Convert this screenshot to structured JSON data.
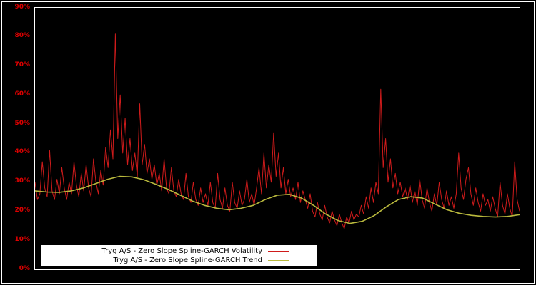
{
  "chart_data": {
    "type": "line",
    "title": "",
    "background_color": "#000000",
    "frame_color": "#ffffff",
    "axis_tick_color": "#dd0000",
    "grid": false,
    "legend_position": "bottom-left-inside",
    "ylim": [
      0,
      90
    ],
    "y_tick_values": [
      0,
      10,
      20,
      30,
      40,
      50,
      60,
      70,
      80,
      90
    ],
    "y_tick_labels": [
      "0%",
      "10%",
      "20%",
      "30%",
      "40%",
      "50%",
      "60%",
      "70%",
      "80%",
      "90%"
    ],
    "y_unit": "percent",
    "series": [
      {
        "name": "Tryg A/S - Zero Slope Spline-GARCH Volatility",
        "color": "#cf1b1b",
        "stroke_width": 1,
        "values": [
          30,
          24,
          26,
          37,
          28,
          25,
          41,
          27,
          24,
          31,
          26,
          35,
          28,
          24,
          30,
          26,
          37,
          29,
          25,
          33,
          27,
          36,
          28,
          25,
          38,
          30,
          26,
          34,
          29,
          42,
          35,
          48,
          38,
          81,
          45,
          60,
          40,
          52,
          36,
          45,
          34,
          40,
          32,
          57,
          36,
          43,
          33,
          38,
          31,
          36,
          29,
          33,
          27,
          38,
          28,
          26,
          35,
          27,
          25,
          31,
          26,
          24,
          33,
          25,
          23,
          30,
          24,
          22,
          28,
          23,
          26,
          22,
          30,
          23,
          21,
          33,
          24,
          21,
          28,
          22,
          20,
          30,
          23,
          21,
          27,
          22,
          24,
          31,
          23,
          26,
          22,
          28,
          35,
          26,
          40,
          28,
          36,
          30,
          47,
          32,
          40,
          28,
          35,
          26,
          31,
          25,
          28,
          24,
          30,
          23,
          27,
          24,
          21,
          26,
          20,
          18,
          23,
          19,
          17,
          22,
          18,
          16,
          20,
          17,
          15,
          19,
          16,
          14,
          18,
          16,
          20,
          17,
          19,
          18,
          22,
          19,
          25,
          21,
          28,
          23,
          30,
          26,
          62,
          35,
          45,
          30,
          38,
          28,
          33,
          26,
          30,
          25,
          28,
          24,
          29,
          23,
          27,
          22,
          31,
          24,
          21,
          28,
          23,
          20,
          26,
          22,
          30,
          24,
          21,
          27,
          22,
          25,
          21,
          26,
          40,
          28,
          24,
          31,
          35,
          26,
          22,
          28,
          23,
          20,
          26,
          22,
          24,
          20,
          25,
          21,
          18,
          30,
          22,
          19,
          26,
          21,
          18,
          37,
          24,
          20
        ]
      },
      {
        "name": "Tryg A/S - Zero Slope Spline-GARCH Trend",
        "color": "#b9b93d",
        "stroke_width": 1.6,
        "x": [
          0,
          0.025,
          0.05,
          0.075,
          0.1,
          0.125,
          0.15,
          0.175,
          0.2,
          0.225,
          0.25,
          0.275,
          0.3,
          0.325,
          0.35,
          0.375,
          0.4,
          0.425,
          0.45,
          0.475,
          0.5,
          0.525,
          0.55,
          0.575,
          0.6,
          0.625,
          0.65,
          0.675,
          0.7,
          0.725,
          0.75,
          0.775,
          0.8,
          0.825,
          0.85,
          0.875,
          0.9,
          0.925,
          0.95,
          0.975,
          1
        ],
        "values": [
          27,
          26.6,
          26.5,
          27,
          28,
          29.5,
          31,
          32,
          31.8,
          30.8,
          29.2,
          27.5,
          25.5,
          23.5,
          22,
          21,
          20.5,
          21,
          22,
          24,
          25.5,
          25.8,
          24.5,
          22,
          19,
          16.8,
          15.8,
          16.5,
          18.5,
          21.5,
          24,
          25,
          24.5,
          22.5,
          20.5,
          19.3,
          18.6,
          18.2,
          18,
          18.2,
          18.8
        ]
      }
    ]
  }
}
